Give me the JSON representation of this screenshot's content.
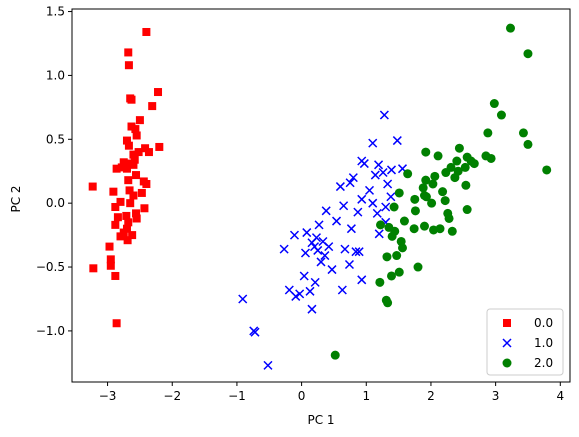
{
  "chart_data": {
    "type": "scatter",
    "title": "",
    "xlabel": "PC 1",
    "ylabel": "PC 2",
    "xlim": [
      -3.55,
      4.15
    ],
    "ylim": [
      -1.4,
      1.52
    ],
    "xticks": [
      -3,
      -2,
      -1,
      0,
      1,
      2,
      3,
      4
    ],
    "xtick_labels": [
      "−3",
      "−2",
      "−1",
      "0",
      "1",
      "2",
      "3",
      "4"
    ],
    "yticks": [
      -1.0,
      -0.5,
      0.0,
      0.5,
      1.0,
      1.5
    ],
    "ytick_labels": [
      "−1.0",
      "−0.5",
      "0.0",
      "0.5",
      "1.0",
      "1.5"
    ],
    "grid": false,
    "legend_position": "lower-right",
    "series": [
      {
        "name": "0.0",
        "color": "#ff0000",
        "marker": "square",
        "points": [
          [
            -2.4,
            1.34
          ],
          [
            -2.68,
            1.18
          ],
          [
            -2.67,
            1.08
          ],
          [
            -2.65,
            0.82
          ],
          [
            -2.63,
            0.81
          ],
          [
            -2.22,
            0.87
          ],
          [
            -2.31,
            0.76
          ],
          [
            -2.5,
            0.65
          ],
          [
            -2.63,
            0.6
          ],
          [
            -2.57,
            0.58
          ],
          [
            -2.55,
            0.53
          ],
          [
            -2.7,
            0.49
          ],
          [
            -2.67,
            0.45
          ],
          [
            -2.2,
            0.44
          ],
          [
            -2.42,
            0.43
          ],
          [
            -2.36,
            0.4
          ],
          [
            -2.52,
            0.4
          ],
          [
            -2.6,
            0.38
          ],
          [
            -2.58,
            0.34
          ],
          [
            -2.75,
            0.32
          ],
          [
            -2.68,
            0.31
          ],
          [
            -2.6,
            0.3
          ],
          [
            -2.86,
            0.27
          ],
          [
            -2.78,
            0.28
          ],
          [
            -2.7,
            0.27
          ],
          [
            -2.56,
            0.22
          ],
          [
            -2.68,
            0.18
          ],
          [
            -2.44,
            0.17
          ],
          [
            -2.4,
            0.15
          ],
          [
            -3.23,
            0.13
          ],
          [
            -2.66,
            0.1
          ],
          [
            -2.91,
            0.09
          ],
          [
            -2.47,
            0.08
          ],
          [
            -2.6,
            0.06
          ],
          [
            -2.8,
            0.01
          ],
          [
            -2.65,
            0.0
          ],
          [
            -2.88,
            -0.03
          ],
          [
            -2.43,
            -0.04
          ],
          [
            -2.56,
            -0.08
          ],
          [
            -2.71,
            -0.1
          ],
          [
            -2.84,
            -0.11
          ],
          [
            -2.55,
            -0.12
          ],
          [
            -2.68,
            -0.15
          ],
          [
            -2.88,
            -0.17
          ],
          [
            -2.7,
            -0.2
          ],
          [
            -2.75,
            -0.23
          ],
          [
            -2.62,
            -0.25
          ],
          [
            -2.8,
            -0.26
          ],
          [
            -2.69,
            -0.29
          ],
          [
            -2.97,
            -0.34
          ],
          [
            -2.95,
            -0.44
          ],
          [
            -3.22,
            -0.51
          ],
          [
            -2.95,
            -0.49
          ],
          [
            -2.88,
            -0.57
          ],
          [
            -2.86,
            -0.94
          ]
        ]
      },
      {
        "name": "1.0",
        "color": "#0000ff",
        "marker": "x",
        "points": [
          [
            1.28,
            0.69
          ],
          [
            1.48,
            0.49
          ],
          [
            1.1,
            0.47
          ],
          [
            0.93,
            0.33
          ],
          [
            0.97,
            0.31
          ],
          [
            1.19,
            0.3
          ],
          [
            1.39,
            0.26
          ],
          [
            1.26,
            0.24
          ],
          [
            1.56,
            0.27
          ],
          [
            1.14,
            0.22
          ],
          [
            0.8,
            0.2
          ],
          [
            0.75,
            0.16
          ],
          [
            1.33,
            0.15
          ],
          [
            0.6,
            0.13
          ],
          [
            1.05,
            0.1
          ],
          [
            1.38,
            0.05
          ],
          [
            0.93,
            0.03
          ],
          [
            1.1,
            0.0
          ],
          [
            0.65,
            -0.02
          ],
          [
            1.3,
            -0.03
          ],
          [
            0.87,
            -0.07
          ],
          [
            1.17,
            -0.08
          ],
          [
            0.38,
            -0.06
          ],
          [
            0.54,
            -0.14
          ],
          [
            0.27,
            -0.17
          ],
          [
            0.77,
            -0.2
          ],
          [
            1.3,
            -0.15
          ],
          [
            1.2,
            -0.24
          ],
          [
            0.08,
            -0.23
          ],
          [
            -0.11,
            -0.25
          ],
          [
            0.23,
            -0.27
          ],
          [
            0.33,
            -0.3
          ],
          [
            0.16,
            -0.31
          ],
          [
            0.2,
            -0.34
          ],
          [
            0.42,
            -0.34
          ],
          [
            0.67,
            -0.36
          ],
          [
            0.25,
            -0.37
          ],
          [
            -0.27,
            -0.36
          ],
          [
            0.06,
            -0.39
          ],
          [
            0.36,
            -0.41
          ],
          [
            0.84,
            -0.38
          ],
          [
            0.89,
            -0.38
          ],
          [
            0.3,
            -0.46
          ],
          [
            0.74,
            -0.48
          ],
          [
            0.47,
            -0.52
          ],
          [
            0.04,
            -0.57
          ],
          [
            0.93,
            -0.6
          ],
          [
            0.21,
            -0.62
          ],
          [
            -0.19,
            -0.68
          ],
          [
            -0.03,
            -0.71
          ],
          [
            0.13,
            -0.69
          ],
          [
            0.63,
            -0.68
          ],
          [
            -0.09,
            -0.73
          ],
          [
            0.16,
            -0.83
          ],
          [
            -0.91,
            -0.75
          ],
          [
            -0.74,
            -1.0
          ],
          [
            -0.72,
            -1.01
          ],
          [
            -0.52,
            -1.27
          ]
        ]
      },
      {
        "name": "2.0",
        "color": "#008000",
        "marker": "circle",
        "points": [
          [
            3.23,
            1.37
          ],
          [
            3.5,
            1.17
          ],
          [
            2.98,
            0.78
          ],
          [
            3.09,
            0.69
          ],
          [
            2.88,
            0.55
          ],
          [
            3.43,
            0.55
          ],
          [
            3.5,
            0.46
          ],
          [
            2.44,
            0.43
          ],
          [
            1.92,
            0.4
          ],
          [
            2.11,
            0.37
          ],
          [
            2.56,
            0.36
          ],
          [
            2.85,
            0.37
          ],
          [
            2.4,
            0.33
          ],
          [
            2.62,
            0.33
          ],
          [
            2.93,
            0.35
          ],
          [
            2.31,
            0.28
          ],
          [
            2.53,
            0.28
          ],
          [
            2.67,
            0.31
          ],
          [
            2.42,
            0.25
          ],
          [
            2.23,
            0.24
          ],
          [
            1.64,
            0.23
          ],
          [
            3.79,
            0.26
          ],
          [
            2.06,
            0.21
          ],
          [
            2.37,
            0.2
          ],
          [
            1.92,
            0.18
          ],
          [
            2.03,
            0.15
          ],
          [
            2.54,
            0.14
          ],
          [
            1.88,
            0.12
          ],
          [
            2.18,
            0.09
          ],
          [
            1.9,
            0.06
          ],
          [
            1.93,
            0.05
          ],
          [
            1.51,
            0.08
          ],
          [
            1.75,
            0.03
          ],
          [
            2.22,
            0.02
          ],
          [
            2.01,
            0.0
          ],
          [
            1.43,
            -0.03
          ],
          [
            2.56,
            -0.05
          ],
          [
            2.26,
            -0.08
          ],
          [
            1.76,
            -0.06
          ],
          [
            2.28,
            -0.12
          ],
          [
            1.59,
            -0.14
          ],
          [
            1.22,
            -0.17
          ],
          [
            1.35,
            -0.19
          ],
          [
            1.9,
            -0.18
          ],
          [
            2.14,
            -0.2
          ],
          [
            2.04,
            -0.21
          ],
          [
            1.74,
            -0.2
          ],
          [
            1.44,
            -0.22
          ],
          [
            2.33,
            -0.22
          ],
          [
            1.4,
            -0.26
          ],
          [
            1.54,
            -0.3
          ],
          [
            1.56,
            -0.35
          ],
          [
            1.47,
            -0.41
          ],
          [
            1.32,
            -0.42
          ],
          [
            1.8,
            -0.5
          ],
          [
            1.51,
            -0.54
          ],
          [
            1.39,
            -0.57
          ],
          [
            1.21,
            -0.62
          ],
          [
            1.31,
            -0.76
          ],
          [
            1.33,
            -0.78
          ],
          [
            0.52,
            -1.19
          ]
        ]
      }
    ]
  }
}
